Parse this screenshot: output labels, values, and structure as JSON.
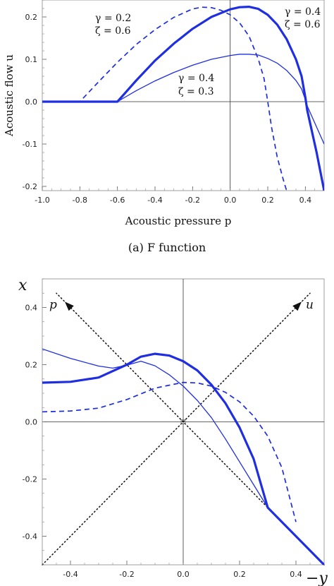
{
  "chart_data": [
    {
      "type": "line",
      "caption": "(a) F function",
      "xlabel": "Acoustic pressure p",
      "ylabel": "Acoustic flow u",
      "xlim": [
        -1.0,
        0.5
      ],
      "ylim": [
        -0.21,
        0.24
      ],
      "xticks": [
        "-1.0",
        "-0.8",
        "-0.6",
        "-0.4",
        "-0.2",
        "0.0",
        "0.2",
        "0.4"
      ],
      "yticks": [
        "-0.2",
        "-0.1",
        "0.0",
        "0.1",
        "0.2"
      ],
      "series": [
        {
          "style": "dashed",
          "x": [
            -1.0,
            -0.8,
            -0.7,
            -0.6,
            -0.5,
            -0.4,
            -0.3,
            -0.2,
            -0.15,
            -0.1,
            -0.05,
            0.0,
            0.05,
            0.1,
            0.15,
            0.18,
            0.2,
            0.22,
            0.25,
            0.28,
            0.3
          ],
          "y": [
            0.0,
            0.0,
            0.047,
            0.093,
            0.135,
            0.17,
            0.199,
            0.219,
            0.223,
            0.222,
            0.216,
            0.205,
            0.186,
            0.155,
            0.1,
            0.055,
            0.0,
            -0.06,
            -0.13,
            -0.18,
            -0.21
          ]
        },
        {
          "style": "thick",
          "x": [
            -1.0,
            -0.6,
            -0.5,
            -0.4,
            -0.3,
            -0.2,
            -0.1,
            0.0,
            0.05,
            0.1,
            0.15,
            0.2,
            0.25,
            0.3,
            0.35,
            0.38,
            0.4,
            0.41,
            0.43,
            0.46,
            0.5
          ],
          "y": [
            0.0,
            0.0,
            0.05,
            0.097,
            0.137,
            0.172,
            0.2,
            0.218,
            0.223,
            0.224,
            0.219,
            0.205,
            0.182,
            0.148,
            0.1,
            0.06,
            0.01,
            -0.02,
            -0.06,
            -0.12,
            -0.21
          ]
        },
        {
          "style": "thin",
          "x": [
            -1.0,
            -0.6,
            -0.5,
            -0.4,
            -0.3,
            -0.2,
            -0.1,
            0.0,
            0.05,
            0.1,
            0.15,
            0.2,
            0.25,
            0.3,
            0.35,
            0.38,
            0.4,
            0.41,
            0.43,
            0.46,
            0.5
          ],
          "y": [
            0.0,
            0.0,
            0.026,
            0.049,
            0.069,
            0.086,
            0.1,
            0.109,
            0.112,
            0.112,
            0.11,
            0.102,
            0.091,
            0.074,
            0.05,
            0.03,
            0.005,
            -0.01,
            -0.03,
            -0.06,
            -0.1
          ]
        }
      ],
      "annotations": [
        {
          "gamma": "γ = 0.2",
          "zeta": "ζ = 0.6"
        },
        {
          "gamma": "γ = 0.4",
          "zeta": "ζ = 0.6"
        },
        {
          "gamma": "γ = 0.4",
          "zeta": "ζ = 0.3"
        }
      ]
    },
    {
      "type": "line",
      "xlabel": "−y",
      "ylabel": "x",
      "xlim": [
        -0.5,
        0.5
      ],
      "ylim": [
        -0.5,
        0.5
      ],
      "xticks": [
        "-0.4",
        "-0.2",
        "0.0",
        "0.2",
        "0.4"
      ],
      "yticks": [
        "-0.4",
        "-0.2",
        "0.0",
        "0.2",
        "0.4"
      ],
      "diagonal_labels": {
        "p": "p",
        "u": "u"
      },
      "series": [
        {
          "style": "dashed",
          "x": [
            -0.5,
            -0.4,
            -0.3,
            -0.2,
            -0.1,
            0.0,
            0.05,
            0.1,
            0.15,
            0.2,
            0.25,
            0.3,
            0.35,
            0.4
          ],
          "y": [
            0.035,
            0.038,
            0.048,
            0.078,
            0.118,
            0.138,
            0.136,
            0.125,
            0.103,
            0.07,
            0.02,
            -0.05,
            -0.16,
            -0.35
          ]
        },
        {
          "style": "thick",
          "x": [
            -0.5,
            -0.4,
            -0.3,
            -0.2,
            -0.15,
            -0.1,
            -0.05,
            0.0,
            0.05,
            0.1,
            0.15,
            0.2,
            0.25,
            0.3,
            0.35,
            0.4,
            0.45,
            0.5
          ],
          "y": [
            0.137,
            0.14,
            0.155,
            0.2,
            0.228,
            0.238,
            0.232,
            0.212,
            0.18,
            0.13,
            0.065,
            -0.02,
            -0.13,
            -0.3,
            -0.35,
            -0.4,
            -0.45,
            -0.5
          ]
        },
        {
          "style": "thin",
          "x": [
            -0.5,
            -0.4,
            -0.3,
            -0.25,
            -0.2,
            -0.15,
            -0.1,
            -0.05,
            0.0,
            0.05,
            0.1,
            0.15,
            0.2,
            0.25,
            0.3
          ],
          "y": [
            0.255,
            0.222,
            0.195,
            0.188,
            0.198,
            0.212,
            0.196,
            0.165,
            0.125,
            0.075,
            0.015,
            -0.06,
            -0.14,
            -0.22,
            -0.3
          ]
        }
      ]
    }
  ]
}
